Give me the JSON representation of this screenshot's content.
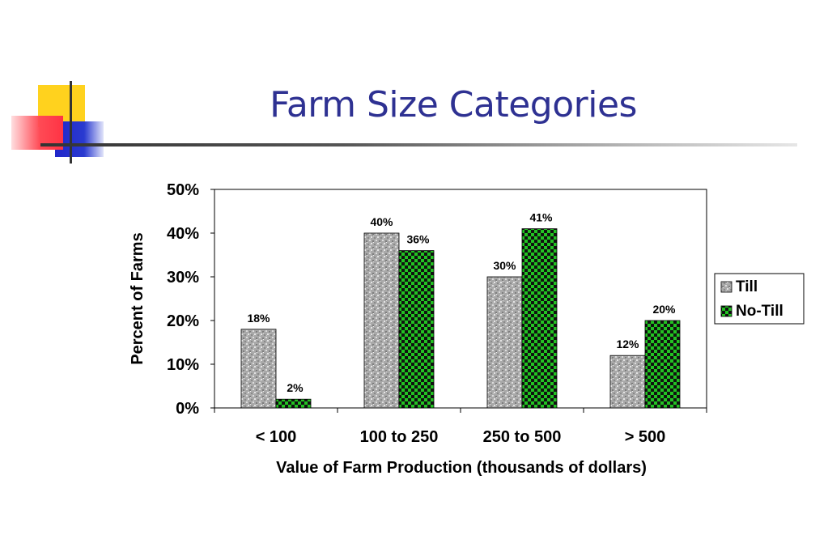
{
  "slide": {
    "title": "Farm Size Categories",
    "title_color": "#2e3192"
  },
  "chart_data": {
    "type": "bar",
    "title": "",
    "xlabel": "Value of Farm Production (thousands of dollars)",
    "ylabel": "Percent of Farms",
    "categories": [
      "< 100",
      "100 to 250",
      "250 to 500",
      "> 500"
    ],
    "series": [
      {
        "name": "Till",
        "values": [
          18,
          40,
          30,
          12
        ],
        "labels": [
          "18%",
          "40%",
          "30%",
          "12%"
        ],
        "color": "#a6a6a6",
        "pattern": "speckled-gray"
      },
      {
        "name": "No-Till",
        "values": [
          2,
          36,
          41,
          20
        ],
        "labels": [
          "2%",
          "36%",
          "41%",
          "20%"
        ],
        "color": "#22c322",
        "pattern": "checker-green-black"
      }
    ],
    "ylim": [
      0,
      50
    ],
    "yticks": [
      "0%",
      "10%",
      "20%",
      "30%",
      "40%",
      "50%"
    ],
    "grid": false,
    "legend": "right"
  }
}
